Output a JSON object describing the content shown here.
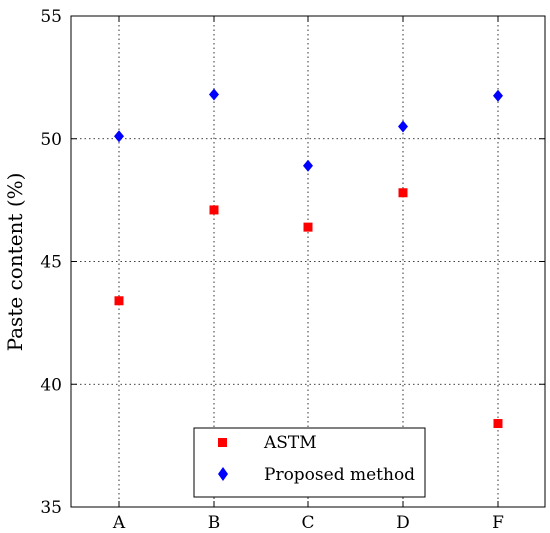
{
  "chart_data": {
    "type": "scatter",
    "title": "",
    "xlabel": "",
    "ylabel": "Paste content (%)",
    "categories": [
      "A",
      "B",
      "C",
      "D",
      "F"
    ],
    "ylim": [
      35,
      55
    ],
    "yticks": [
      "35",
      "40",
      "45",
      "50",
      "55"
    ],
    "grid": true,
    "legend_position": "bottom-right",
    "series": [
      {
        "name": "ASTM",
        "marker": "square",
        "color": "#ff0000",
        "values": [
          43.4,
          47.1,
          46.4,
          47.8,
          38.4
        ]
      },
      {
        "name": "Proposed method",
        "marker": "diamond",
        "color": "#0000ff",
        "values": [
          50.1,
          51.8,
          48.9,
          50.5,
          51.75
        ]
      }
    ]
  }
}
